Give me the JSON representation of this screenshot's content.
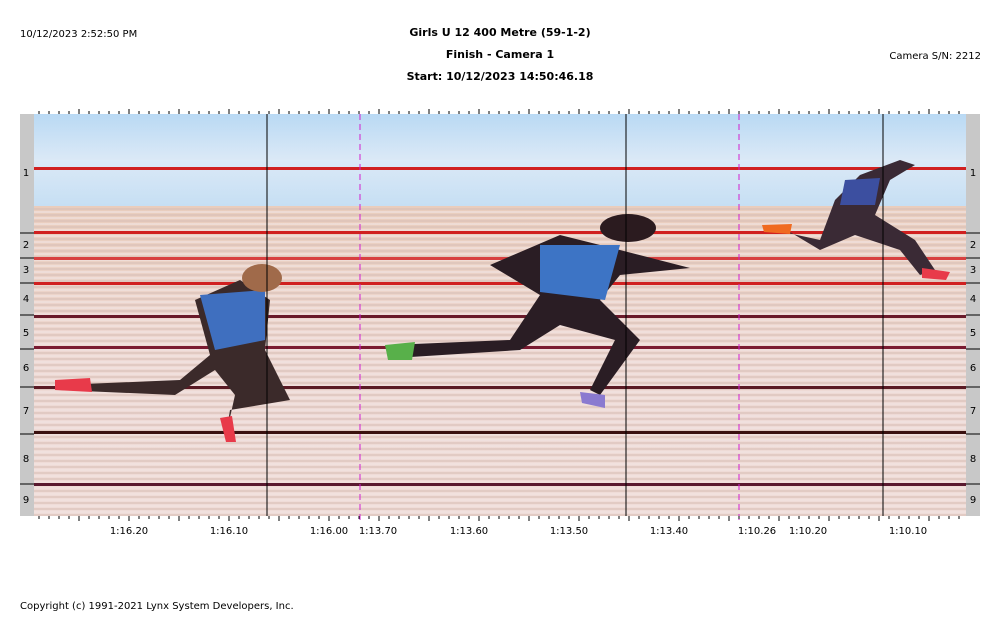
{
  "header": {
    "timestamp": "10/12/2023 2:52:50 PM",
    "title": "Girls U 12 400 Metre (59-1-2)",
    "subtitle": "Finish - Camera 1",
    "start": "Start: 10/12/2023 14:50:46.18",
    "camera": "Camera S/N: 2212"
  },
  "lanes": [
    "1",
    "2",
    "3",
    "4",
    "5",
    "6",
    "7",
    "8",
    "9"
  ],
  "time_axis": [
    "1:16.20",
    "1:16.10",
    "1:16.00",
    "1:13.70",
    "1:13.60",
    "1:13.50",
    "1:13.40",
    "1:10.26",
    "1:10.20",
    "1:10.10"
  ],
  "footer": "Copyright (c) 1991-2021 Lynx System Developers, Inc."
}
